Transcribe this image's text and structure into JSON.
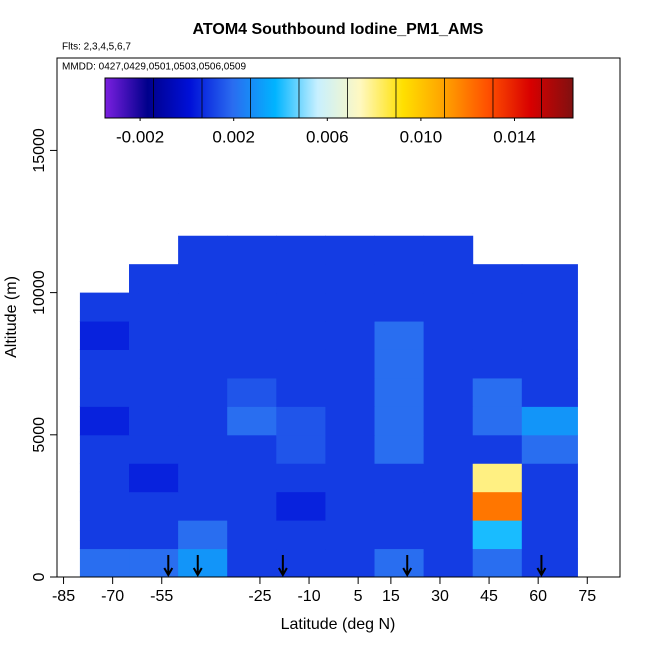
{
  "chart_data": {
    "type": "heatmap",
    "title": "ATOM4 Southbound Iodine_PM1_AMS",
    "flights_label": "Flts: 2,3,4,5,6,7",
    "dates_label": "MMDD: 0427,0429,0501,0503,0506,0509",
    "x_label": "Latitude (deg N)",
    "y_label": "Altitude (m)",
    "xlim": [
      -87,
      85
    ],
    "ylim": [
      0,
      18250
    ],
    "xticks": [
      -85,
      -70,
      -55,
      -25,
      -10,
      5,
      15,
      30,
      45,
      60,
      75
    ],
    "yticks": [
      0,
      5000,
      10000,
      15000
    ],
    "x_bins": [
      -80,
      -65,
      -50,
      -35,
      -20,
      -5,
      10,
      25,
      40,
      55,
      72
    ],
    "y_bins": [
      0,
      1000,
      2000,
      3000,
      4000,
      5000,
      6000,
      7000,
      8000,
      9000,
      10000,
      11000,
      12000
    ],
    "z": [
      [
        0.002,
        0.002,
        0.003,
        0.001,
        0.001,
        0.001,
        0.002,
        0.001,
        0.002,
        0.001
      ],
      [
        0.001,
        0.001,
        0.002,
        0.001,
        0.001,
        0.001,
        0.001,
        0.001,
        0.004,
        0.001
      ],
      [
        0.001,
        0.001,
        0.001,
        0.001,
        0.0005,
        0.001,
        0.001,
        0.001,
        0.012,
        0.001
      ],
      [
        0.001,
        0.0005,
        0.001,
        0.001,
        0.001,
        0.001,
        0.001,
        0.001,
        0.008,
        0.001
      ],
      [
        0.001,
        0.001,
        0.001,
        0.001,
        0.0015,
        0.001,
        0.002,
        0.001,
        0.001,
        0.002
      ],
      [
        0.0005,
        0.001,
        0.001,
        0.002,
        0.0015,
        0.001,
        0.002,
        0.001,
        0.002,
        0.003
      ],
      [
        0.001,
        0.001,
        0.001,
        0.0015,
        0.001,
        0.001,
        0.002,
        0.001,
        0.002,
        0.001
      ],
      [
        0.001,
        0.001,
        0.001,
        0.001,
        0.001,
        0.001,
        0.002,
        0.001,
        0.001,
        0.001
      ],
      [
        0.0005,
        0.001,
        0.001,
        0.001,
        0.001,
        0.001,
        0.002,
        0.001,
        0.001,
        0.001
      ],
      [
        0.001,
        0.001,
        0.001,
        0.001,
        0.001,
        0.001,
        0.001,
        0.001,
        0.001,
        0.001
      ],
      [
        null,
        0.001,
        0.001,
        0.001,
        0.001,
        0.001,
        0.001,
        0.001,
        0.001,
        0.001
      ],
      [
        null,
        null,
        0.001,
        0.001,
        0.001,
        0.001,
        0.001,
        0.001,
        null,
        null
      ]
    ],
    "zlim": [
      -0.0035,
      0.0165
    ],
    "zticks": [
      -0.002,
      0.002,
      0.006,
      {
        "value": 0.01,
        "label": "0.010"
      },
      0.014
    ],
    "colormap": [
      "#7b1fe0",
      "#00008b",
      "#0010d8",
      "#2a6cf0",
      "#00b4ff",
      "#c8f0ff",
      "#fff8c0",
      "#ffe000",
      "#ffa000",
      "#ff5000",
      "#d80000",
      "#801010"
    ],
    "flight_markers": [
      -53,
      -44,
      -18,
      20,
      61
    ]
  }
}
